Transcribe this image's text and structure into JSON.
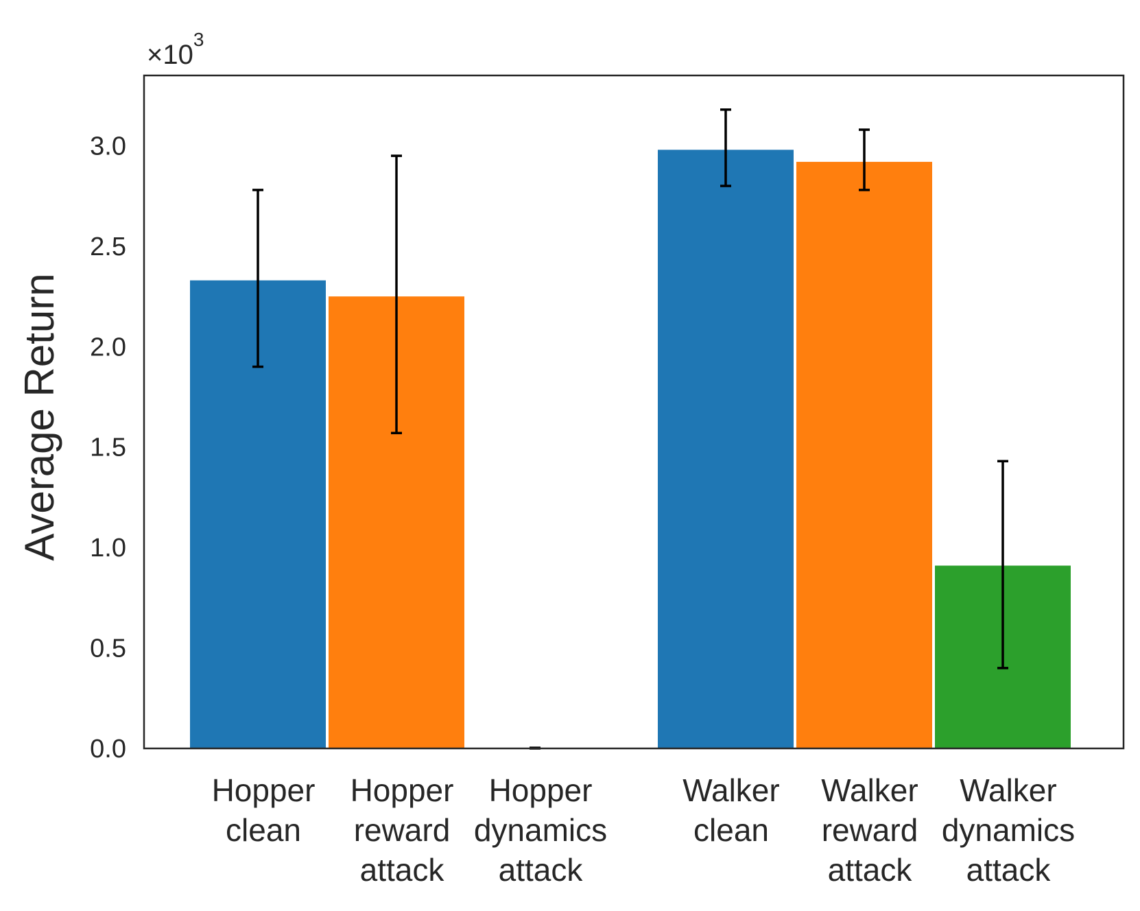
{
  "chart_data": {
    "type": "bar",
    "ylabel": "Average Return",
    "y_scale_label": "×10",
    "y_scale_exponent": "3",
    "ylim": [
      0,
      3.35
    ],
    "yticks": [
      "0.0",
      "0.5",
      "1.0",
      "1.5",
      "2.0",
      "2.5",
      "3.0"
    ],
    "ytick_values": [
      0,
      0.5,
      1.0,
      1.5,
      2.0,
      2.5,
      3.0
    ],
    "grid": false,
    "groups": [
      {
        "name": "Hopper",
        "bars": [
          {
            "label": [
              "Hopper",
              "clean"
            ],
            "value": 2.33,
            "err_low": 1.9,
            "err_high": 2.78,
            "color": "#1f77b4"
          },
          {
            "label": [
              "Hopper",
              "reward",
              "attack"
            ],
            "value": 2.25,
            "err_low": 1.57,
            "err_high": 2.95,
            "color": "#ff7f0e"
          },
          {
            "label": [
              "Hopper",
              "dynamics",
              "attack"
            ],
            "value": 0.0,
            "err_low": 0.0,
            "err_high": 0.003,
            "color": "#2ca02c"
          }
        ]
      },
      {
        "name": "Walker",
        "bars": [
          {
            "label": [
              "Walker",
              "clean"
            ],
            "value": 2.98,
            "err_low": 2.8,
            "err_high": 3.18,
            "color": "#1f77b4"
          },
          {
            "label": [
              "Walker",
              "reward",
              "attack"
            ],
            "value": 2.92,
            "err_low": 2.78,
            "err_high": 3.08,
            "color": "#ff7f0e"
          },
          {
            "label": [
              "Walker",
              "dynamics",
              "attack"
            ],
            "value": 0.91,
            "err_low": 0.4,
            "err_high": 1.43,
            "color": "#2ca02c"
          }
        ]
      }
    ]
  }
}
